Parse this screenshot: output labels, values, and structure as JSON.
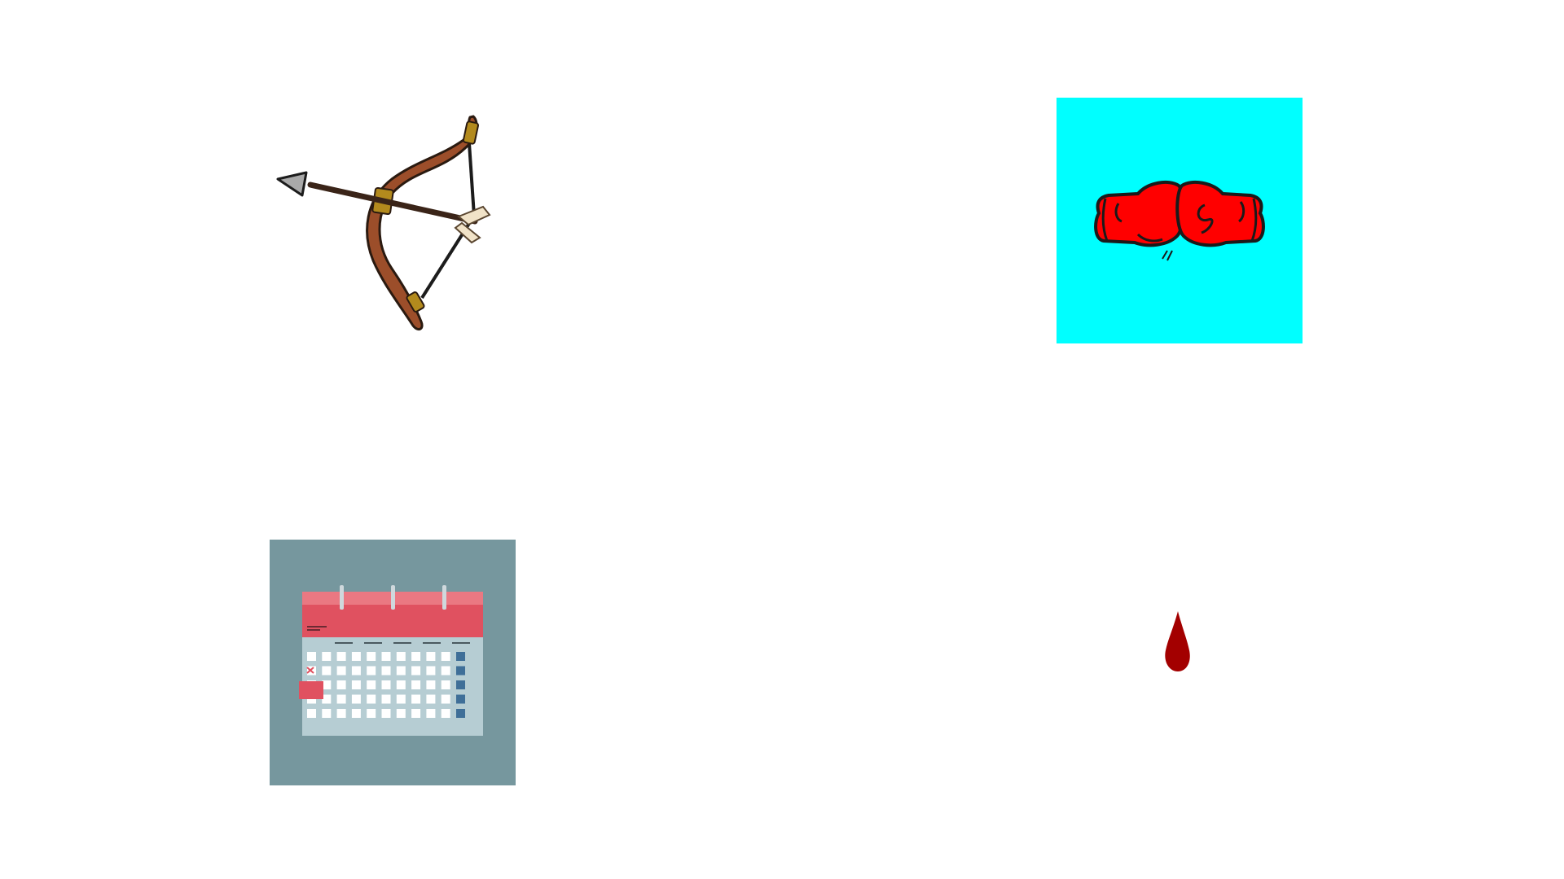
{
  "tiles": [
    {
      "id": "bow",
      "icon": "bow-and-arrow-icon",
      "background": "#ffffff"
    },
    {
      "id": "gloves",
      "icon": "boxing-gloves-icon",
      "background": "#00ffff"
    },
    {
      "id": "calendar",
      "icon": "calendar-icon",
      "background": "#76979e"
    },
    {
      "id": "drop",
      "icon": "blood-drop-icon",
      "background": "#ffffff"
    }
  ],
  "colors": {
    "bow_wood": "#9c4e2a",
    "bow_wrap": "#b38a1d",
    "arrow_head": "#a9a9a9",
    "glove_red": "#ff0000",
    "cyan": "#00ffff",
    "calendar_bg": "#76979e",
    "calendar_header": "#e05160",
    "calendar_body": "#b6cdd3",
    "calendar_side": "#3f6f98",
    "blood": "#a30000"
  }
}
